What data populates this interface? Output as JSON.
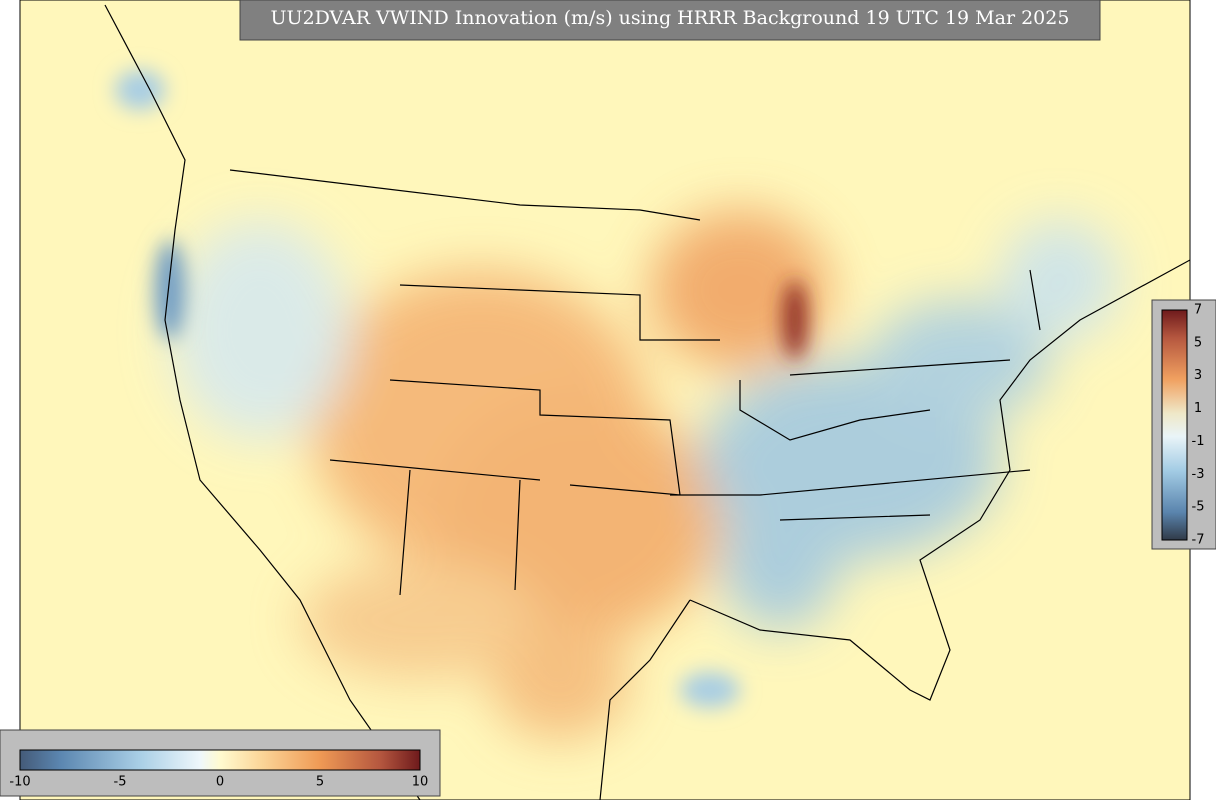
{
  "title": "UU2DVAR VWIND Innovation (m/s) using HRRR Background 19 UTC 19 Mar 2025",
  "colorbar_bottom": {
    "ticks": [
      -10,
      -5,
      0,
      5,
      10
    ]
  },
  "colorbar_right": {
    "ticks": [
      7,
      5,
      3,
      1,
      -1,
      -3,
      -5,
      -7
    ]
  }
}
